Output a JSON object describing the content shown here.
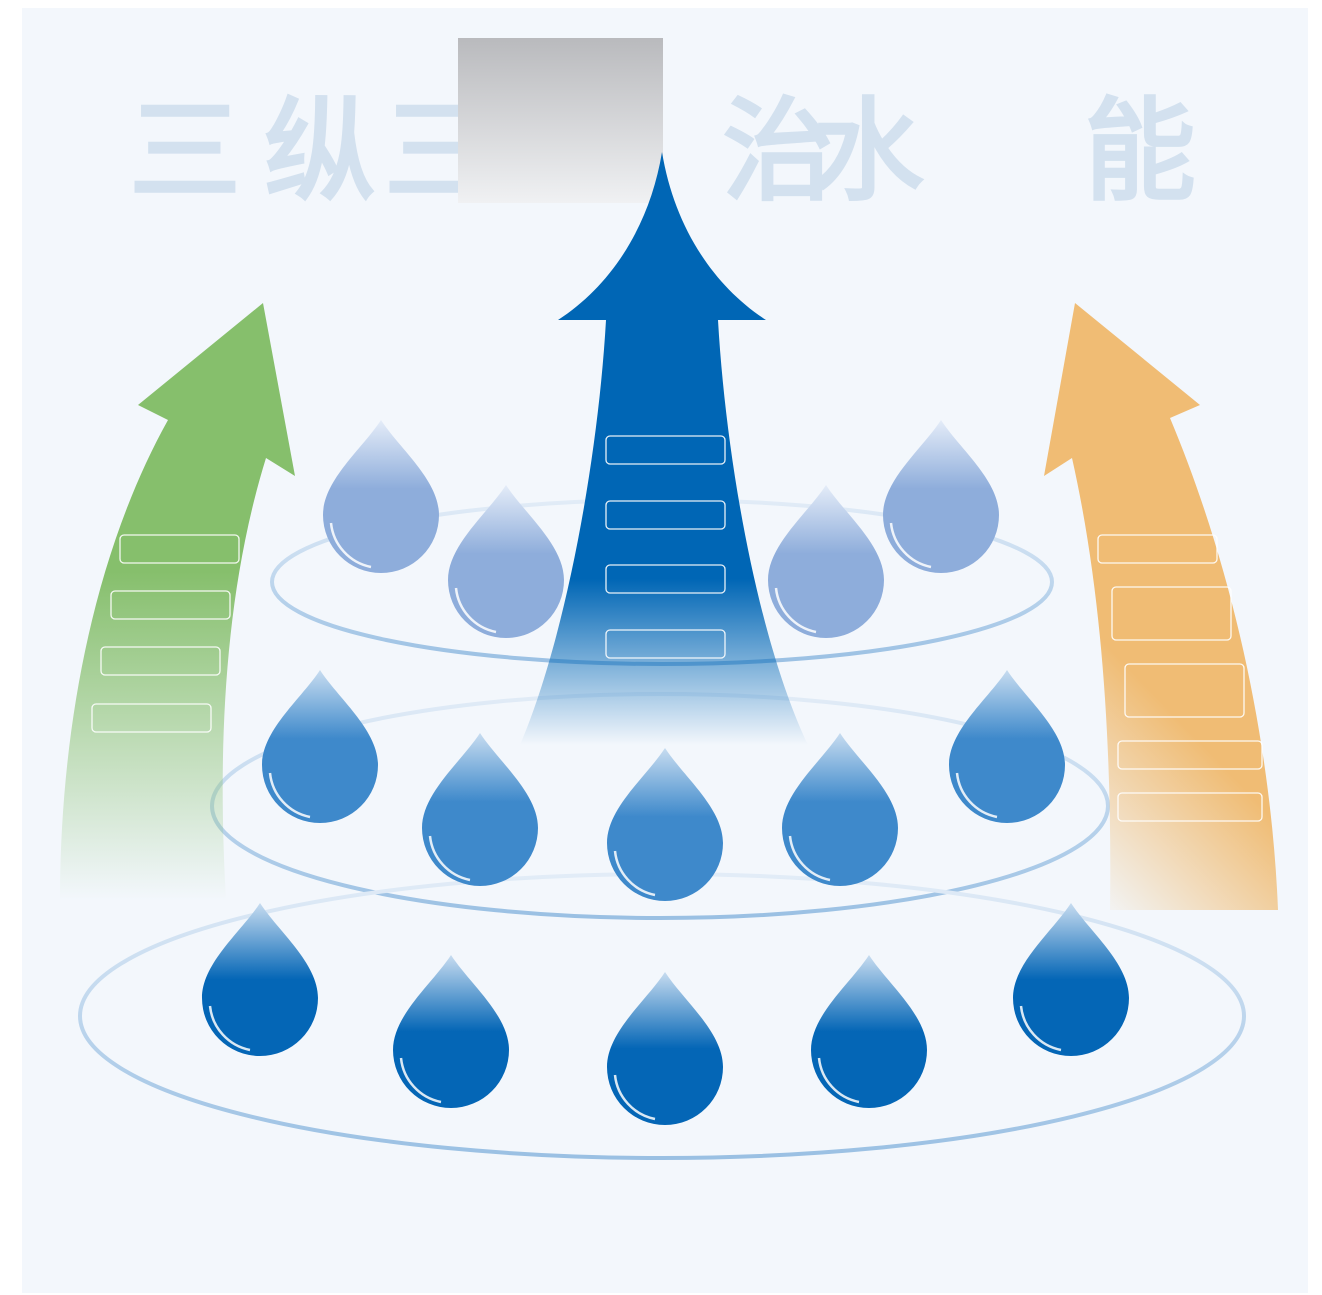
{
  "title": {
    "chars": [
      "三",
      "纵",
      "三",
      "",
      "治",
      "水",
      "",
      "能"
    ],
    "color": "#d3e1ef"
  },
  "colors": {
    "background": "#f3f7fc",
    "green_arrow": "#86bf6c",
    "blue_arrow": "#0066b5",
    "orange_arrow": "#f0bc74",
    "ring": "#a7c7e6",
    "drop_light": "#8eaddb",
    "drop_mid": "#3e89cb",
    "drop_dark": "#0466b6",
    "occluder": "#c4c6ca"
  },
  "rings": [
    {
      "tier": "top"
    },
    {
      "tier": "middle"
    },
    {
      "tier": "bottom"
    }
  ],
  "drops": {
    "top": 4,
    "middle": 5,
    "bottom": 5
  },
  "label_boxes": {
    "green": [
      "",
      "",
      "",
      ""
    ],
    "blue": [
      "",
      "",
      "",
      ""
    ],
    "orange": [
      "",
      "",
      "",
      "",
      ""
    ]
  }
}
